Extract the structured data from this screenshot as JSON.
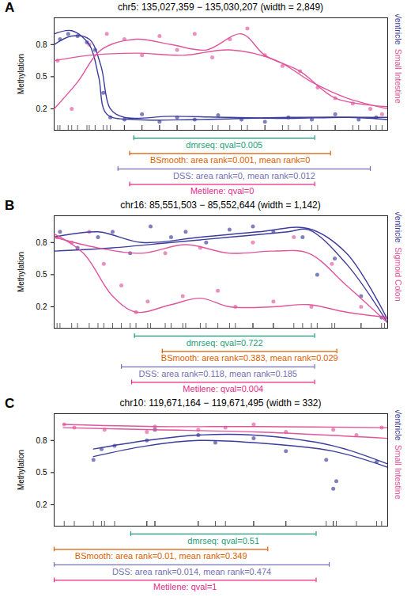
{
  "chart_data": [
    {
      "type": "scatter",
      "panel": "A",
      "title": "chr5: 135,027,359 − 135,030,207 (width = 2,849)",
      "y_label": "Methylation",
      "xlim": [
        135027359,
        135030207
      ],
      "ylim": [
        0,
        1.05
      ],
      "yticks": [
        0.2,
        0.5,
        0.8
      ],
      "tick_labels": "y",
      "grid": false,
      "series": [
        {
          "name": "Left Ventricle",
          "color": "#3c3c9c",
          "type": "scatter",
          "x": [
            135027409,
            135027479,
            135027559,
            135027639,
            135027709,
            135027779,
            135027839,
            135027959,
            135028109,
            135028259,
            135028409,
            135028559,
            135028759,
            135028959,
            135029159,
            135029359,
            135029559,
            135029759,
            135029959,
            135030109
          ],
          "values": [
            0.85,
            0.9,
            0.88,
            0.82,
            0.75,
            0.35,
            0.12,
            0.1,
            0.15,
            0.08,
            0.12,
            0.1,
            0.14,
            0.1,
            0.08,
            0.12,
            0.1,
            0.15,
            0.1,
            0.12
          ]
        },
        {
          "name": "Left Ventricle",
          "color": "#3c3c9c",
          "type": "line",
          "x": [
            135027359,
            135027509,
            135027659,
            135027759,
            135027839,
            135027959,
            135028359,
            135028859,
            135029359,
            135029859,
            135030207
          ],
          "values": [
            0.8,
            0.88,
            0.85,
            0.6,
            0.2,
            0.12,
            0.13,
            0.12,
            0.11,
            0.12,
            0.1
          ]
        },
        {
          "name": "Left Ventricle",
          "color": "#3c3c9c",
          "type": "line",
          "x": [
            135027359,
            135027509,
            135027659,
            135027739,
            135027809,
            135028059,
            135028559,
            135029359,
            135030207
          ],
          "values": [
            0.9,
            0.93,
            0.8,
            0.5,
            0.15,
            0.1,
            0.1,
            0.12,
            0.12
          ]
        },
        {
          "name": "Small Intestine",
          "color": "#e0559c",
          "type": "scatter",
          "x": [
            135027389,
            135027509,
            135027659,
            135027809,
            135027959,
            135028109,
            135028259,
            135028409,
            135028559,
            135028709,
            135028859,
            135029009,
            135029159,
            135029309,
            135029459,
            135029609,
            135029759,
            135029909,
            135030059,
            135030159
          ],
          "values": [
            0.65,
            0.2,
            0.8,
            0.9,
            0.85,
            0.7,
            0.88,
            0.75,
            0.9,
            0.68,
            0.85,
            0.95,
            0.7,
            0.6,
            0.55,
            0.4,
            0.3,
            0.25,
            0.2,
            0.15
          ]
        },
        {
          "name": "Small Intestine",
          "color": "#e0559c",
          "type": "line",
          "x": [
            135027359,
            135027659,
            135028059,
            135028459,
            135028859,
            135029259,
            135029559,
            135029859,
            135030207
          ],
          "values": [
            0.65,
            0.7,
            0.72,
            0.7,
            0.75,
            0.65,
            0.45,
            0.3,
            0.2
          ]
        },
        {
          "name": "Small Intestine",
          "color": "#e0559c",
          "type": "line",
          "x": [
            135027359,
            135027559,
            135027759,
            135028059,
            135028359,
            135028659,
            135028959,
            135029159,
            135029459,
            135029759,
            135030207
          ],
          "values": [
            0.2,
            0.45,
            0.75,
            0.85,
            0.8,
            0.75,
            0.9,
            0.7,
            0.55,
            0.3,
            0.22
          ]
        }
      ],
      "annotations": [
        {
          "text": "dmrseq: qval=0.005",
          "color": "#1b9e77",
          "x1": 135028039,
          "x2": 135029584
        },
        {
          "text": "BSmooth: area rank=0.001, mean rank=0",
          "color": "#d95f02",
          "x1": 135028004,
          "x2": 135029719
        },
        {
          "text": "DSS: area rank=0, mean rank=0.012",
          "color": "#7570b3",
          "x1": 135027904,
          "x2": 135030059
        },
        {
          "text": "Metilene: qval=0",
          "color": "#e7298a",
          "x1": 135028004,
          "x2": 135029584
        }
      ]
    },
    {
      "type": "scatter",
      "panel": "B",
      "title": "chr16: 85,551,503 − 85,552,644 (width = 1,142)",
      "y_label": "Methylation",
      "xlim": [
        85551503,
        85552644
      ],
      "ylim": [
        0,
        1.05
      ],
      "yticks": [
        0.2,
        0.5,
        0.8
      ],
      "tick_labels": "y",
      "grid": false,
      "series": [
        {
          "name": "Right Ventricle",
          "color": "#3c3c9c",
          "type": "scatter",
          "x": [
            85551523,
            85551583,
            85551653,
            85551703,
            85551763,
            85551833,
            85551903,
            85551953,
            85552023,
            85552103,
            85552183,
            85552253,
            85552353,
            85552403,
            85552463,
            85552553,
            85552623
          ],
          "values": [
            0.9,
            0.75,
            0.85,
            0.9,
            0.7,
            0.95,
            0.85,
            0.9,
            0.8,
            0.92,
            0.95,
            0.9,
            0.85,
            0.5,
            0.65,
            0.3,
            0.1
          ]
        },
        {
          "name": "Right Ventricle",
          "color": "#3c3c9c",
          "type": "line",
          "x": [
            85551503,
            85551703,
            85551903,
            85552103,
            85552303,
            85552373,
            85552503,
            85552644
          ],
          "values": [
            0.72,
            0.75,
            0.8,
            0.85,
            0.9,
            0.92,
            0.6,
            0.05
          ]
        },
        {
          "name": "Right Ventricle",
          "color": "#3c3c9c",
          "type": "line",
          "x": [
            85551503,
            85551653,
            85551803,
            85552003,
            85552203,
            85552373,
            85552503,
            85552644
          ],
          "values": [
            0.85,
            0.9,
            0.8,
            0.85,
            0.9,
            0.93,
            0.7,
            0.08
          ]
        },
        {
          "name": "Sigmoid Colon",
          "color": "#e0559c",
          "type": "scatter",
          "x": [
            85551513,
            85551563,
            85551623,
            85551673,
            85551733,
            85551783,
            85551823,
            85551883,
            85551943,
            85552003,
            85552063,
            85552123,
            85552183,
            85552253,
            85552323,
            85552383,
            85552453,
            85552553,
            85552633
          ],
          "values": [
            0.85,
            0.8,
            0.9,
            0.6,
            0.4,
            0.15,
            0.25,
            0.7,
            0.3,
            0.75,
            0.35,
            0.2,
            0.8,
            0.25,
            0.85,
            0.2,
            0.6,
            0.2,
            0.1
          ]
        },
        {
          "name": "Sigmoid Colon",
          "color": "#e0559c",
          "type": "line",
          "x": [
            85551503,
            85551653,
            85551803,
            85551953,
            85552103,
            85552253,
            85552373,
            85552503,
            85552644
          ],
          "values": [
            0.85,
            0.75,
            0.7,
            0.78,
            0.7,
            0.72,
            0.7,
            0.4,
            0.05
          ]
        },
        {
          "name": "Sigmoid Colon",
          "color": "#e0559c",
          "type": "line",
          "x": [
            85551503,
            85551603,
            85551703,
            85551783,
            85551903,
            85552003,
            85552103,
            85552253,
            85552373,
            85552503,
            85552644
          ],
          "values": [
            0.88,
            0.7,
            0.3,
            0.15,
            0.22,
            0.28,
            0.2,
            0.2,
            0.22,
            0.15,
            0.1
          ]
        }
      ],
      "annotations": [
        {
          "text": "dmrseq: qval=0.722",
          "color": "#1b9e77",
          "x1": 85551778,
          "x2": 85552394
        },
        {
          "text": "BSmooth: area rank=0.383, mean rank=0.029",
          "color": "#d95f02",
          "x1": 85551873,
          "x2": 85552470
        },
        {
          "text": "DSS: area rank=0.118, mean rank=0.185",
          "color": "#7570b3",
          "x1": 85551733,
          "x2": 85552394
        },
        {
          "text": "Metilene: qval=0.004",
          "color": "#e7298a",
          "x1": 85551768,
          "x2": 85552394
        }
      ]
    },
    {
      "type": "scatter",
      "panel": "C",
      "title": "chr10: 119,671,164 − 119,671,495 (width = 332)",
      "y_label": "Methylation",
      "xlim": [
        119671164,
        119671495
      ],
      "ylim": [
        0,
        1.05
      ],
      "yticks": [
        0.2,
        0.5,
        0.8
      ],
      "tick_labels": "y",
      "grid": false,
      "series": [
        {
          "name": "Left Ventricle",
          "color": "#3c3c9c",
          "type": "scatter",
          "x": [
            119671203,
            119671211,
            119671224,
            119671256,
            119671264,
            119671307,
            119671324,
            119671362,
            119671394,
            119671434,
            119671441,
            119671444,
            119671484
          ],
          "values": [
            0.62,
            0.72,
            0.75,
            0.8,
            0.9,
            0.85,
            0.78,
            0.82,
            0.7,
            0.62,
            0.35,
            0.42,
            0.6
          ]
        },
        {
          "name": "Left Ventricle",
          "color": "#3c3c9c",
          "type": "line",
          "x": [
            119671203,
            119671256,
            119671307,
            119671362,
            119671441,
            119671495
          ],
          "values": [
            0.72,
            0.8,
            0.85,
            0.85,
            0.75,
            0.58
          ]
        },
        {
          "name": "Left Ventricle",
          "color": "#3c3c9c",
          "type": "line",
          "x": [
            119671203,
            119671256,
            119671307,
            119671362,
            119671441,
            119671495
          ],
          "values": [
            0.65,
            0.75,
            0.8,
            0.78,
            0.7,
            0.55
          ]
        },
        {
          "name": "Small Intestine",
          "color": "#e0559c",
          "type": "scatter",
          "x": [
            119671174,
            119671184,
            119671214,
            119671256,
            119671264,
            119671307,
            119671334,
            119671362,
            119671394,
            119671441,
            119671464,
            119671489
          ],
          "values": [
            0.95,
            0.92,
            0.9,
            0.88,
            0.93,
            0.9,
            0.92,
            0.95,
            0.88,
            0.9,
            0.85,
            0.92
          ]
        },
        {
          "name": "Small Intestine",
          "color": "#e0559c",
          "type": "line",
          "x": [
            119671173,
            119671264,
            119671364,
            119671495
          ],
          "values": [
            0.95,
            0.93,
            0.93,
            0.92
          ]
        },
        {
          "name": "Small Intestine",
          "color": "#e0559c",
          "type": "line",
          "x": [
            119671173,
            119671264,
            119671364,
            119671495
          ],
          "values": [
            0.92,
            0.9,
            0.88,
            0.82
          ]
        }
      ],
      "annotations": [
        {
          "text": "dmrseq: qval=0.51",
          "color": "#1b9e77",
          "x1": 119671240,
          "x2": 119671424
        },
        {
          "text": "BSmooth: area rank=0.01, mean rank=0.349",
          "color": "#d95f02",
          "x1": 119671164,
          "x2": 119671376
        },
        {
          "text": "DSS: area rank=0.014, mean rank=0.474",
          "color": "#7570b3",
          "x1": 119671164,
          "x2": 119671437
        },
        {
          "text": "Metilene: qval=1",
          "color": "#e7298a",
          "x1": 119671164,
          "x2": 119671424
        }
      ]
    }
  ]
}
